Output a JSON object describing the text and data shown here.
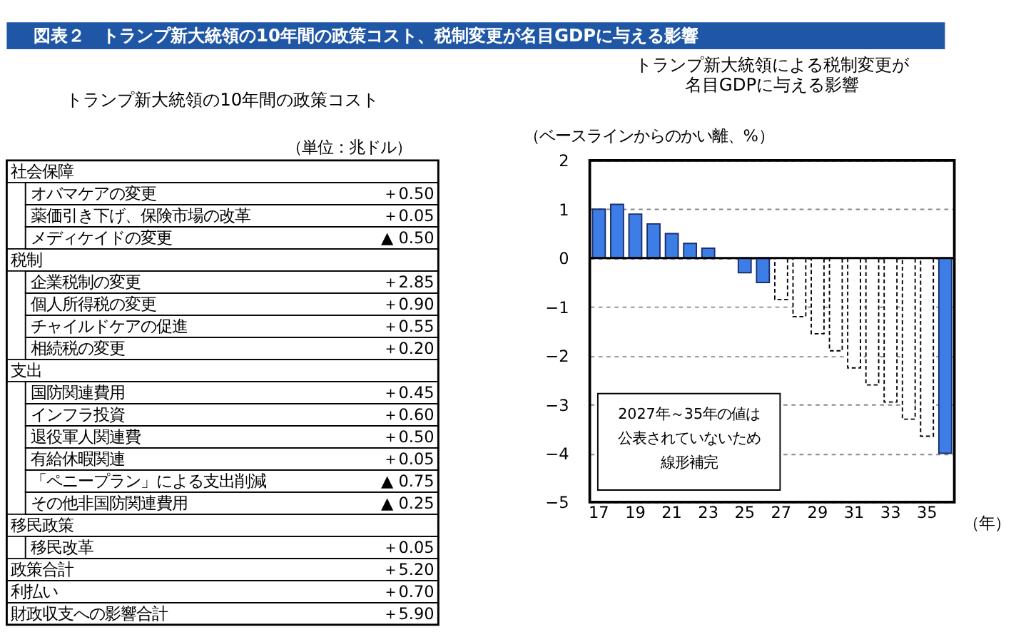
{
  "chart_data": [
    {
      "type": "other",
      "title": "図表２　トランプ新大統領の10年間の政策コスト、税制変更が名目GDPに与える影響",
      "subtitle": "トランプ新大統領の10年間の政策コスト",
      "annotations": [
        "（単位：兆ドル）"
      ],
      "cell_labels": [
        [
          "社会保障",
          null,
          null
        ],
        [
          null,
          "オバマケアの変更",
          "＋0.50"
        ],
        [
          null,
          "薬価引き下げ、保険市場の改革",
          "＋0.05"
        ],
        [
          null,
          "メディケイドの変更",
          "▲ 0.50"
        ],
        [
          "税制",
          null,
          null
        ],
        [
          null,
          "企業税制の変更",
          "＋2.85"
        ],
        [
          null,
          "個人所得税の変更",
          "＋0.90"
        ],
        [
          null,
          "チャイルドケアの促進",
          "＋0.55"
        ],
        [
          null,
          "相続税の変更",
          "＋0.20"
        ],
        [
          "支出",
          null,
          null
        ],
        [
          null,
          "国防関連費用",
          "＋0.45"
        ],
        [
          null,
          "インフラ投資",
          "＋0.60"
        ],
        [
          null,
          "退役軍人関連費",
          "＋0.50"
        ],
        [
          null,
          "有給休暇関連",
          "＋0.05"
        ],
        [
          null,
          "「ペニープラン」による支出削減",
          "▲ 0.75"
        ],
        [
          null,
          "その他非国防関連費用",
          "▲ 0.25"
        ],
        [
          "移民政策",
          null,
          null
        ],
        [
          null,
          "移民改革",
          "＋0.05"
        ],
        [
          "政策合計",
          null,
          "＋5.20"
        ],
        [
          "利払い",
          null,
          "＋0.70"
        ],
        [
          "財政収支への影響合計",
          null,
          "＋5.90"
        ]
      ]
    },
    {
      "type": "bar",
      "title": [
        "トランプ新大統領による税制変更が",
        "名目GDPに与える影響"
      ],
      "ylabel": "（ベースラインからのかい離、%）",
      "xlabel": "（年）",
      "categories": [
        "17",
        null,
        "19",
        null,
        "21",
        null,
        "23",
        null,
        "25",
        null,
        "27",
        null,
        "29",
        null,
        "31",
        null,
        "33",
        null,
        "35",
        null
      ],
      "series": [
        {
          "color": "#3d7ee6",
          "values": [
            1.0,
            1.1,
            0.9,
            0.7,
            0.5,
            0.3,
            0.2,
            null,
            -0.3,
            -0.5,
            null,
            null,
            null,
            null,
            null,
            null,
            null,
            null,
            null,
            -4.0
          ]
        },
        {
          "color": "#ffffff",
          "line_style": "dashed",
          "values": [
            null,
            null,
            null,
            null,
            null,
            null,
            null,
            null,
            null,
            null,
            -0.85,
            -1.2,
            -1.55,
            -1.9,
            -2.25,
            -2.6,
            -2.95,
            -3.3,
            -3.65,
            null
          ]
        }
      ],
      "ylim": [
        -5,
        2
      ],
      "yticks": [
        -5,
        -4,
        -3,
        -2,
        -1,
        0,
        1,
        2
      ],
      "grid": "y",
      "annotations": [
        "2027年～35年の値は",
        "公表されていないため",
        "線形補完"
      ]
    }
  ]
}
